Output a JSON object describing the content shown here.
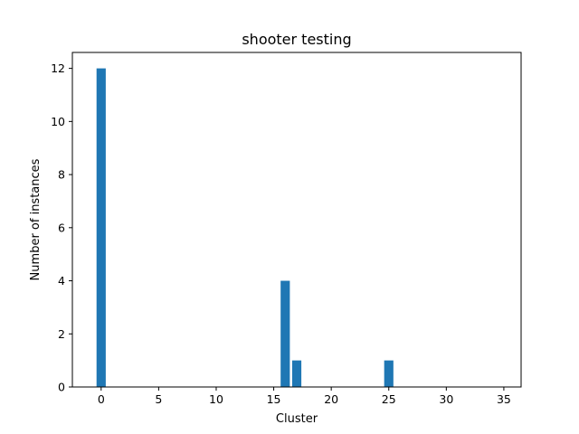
{
  "chart_data": {
    "type": "bar",
    "title": "shooter testing",
    "xlabel": "Cluster",
    "ylabel": "Number of instances",
    "x": [
      0,
      16,
      17,
      25
    ],
    "values": [
      12,
      4,
      1,
      1
    ],
    "xlim": [
      -2.5,
      36.5
    ],
    "ylim": [
      0,
      12.6
    ],
    "xticks": [
      0,
      5,
      10,
      15,
      20,
      25,
      30,
      35
    ],
    "yticks": [
      0,
      2,
      4,
      6,
      8,
      10,
      12
    ],
    "bar_width": 0.8,
    "bar_color": "#1f77b4",
    "grid": false,
    "legend": null
  }
}
